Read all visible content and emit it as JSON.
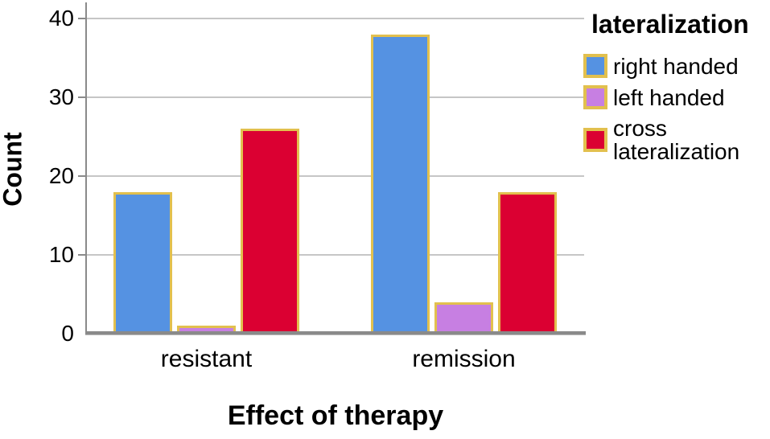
{
  "chart_data": {
    "type": "bar",
    "title": "",
    "xlabel": "Effect of therapy",
    "ylabel": "Count",
    "categories": [
      "resistant",
      "remission"
    ],
    "series": [
      {
        "name": "right handed",
        "color": "#5592e2",
        "values": [
          18,
          38
        ]
      },
      {
        "name": "left handed",
        "color": "#c77fe2",
        "values": [
          1,
          4
        ]
      },
      {
        "name": "cross lateralization",
        "color": "#db0032",
        "values": [
          26,
          18
        ]
      }
    ],
    "legend_title": "lateralization",
    "legend_position": "right",
    "yticks": [
      0,
      10,
      20,
      30,
      40
    ],
    "ylim": [
      0,
      42
    ],
    "grid": true,
    "bar_border_color": "#e2c04e",
    "gridline_color": "#c6c6c6",
    "axis_color": "#8a8a8a"
  }
}
